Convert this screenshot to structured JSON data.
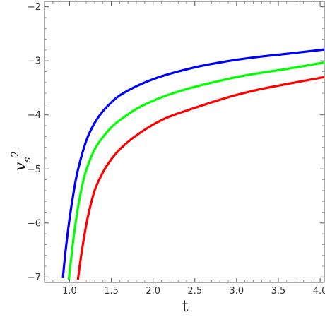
{
  "chart_data": {
    "type": "line",
    "title": "",
    "xlabel": "t",
    "ylabel": "v",
    "ylabel_subscript": "s",
    "ylabel_superscript": "2",
    "xlim": [
      0.7,
      4.05
    ],
    "ylim": [
      -7.1,
      -1.9
    ],
    "x_ticks": [
      1.0,
      1.5,
      2.0,
      2.5,
      3.0,
      3.5,
      4.0
    ],
    "x_tick_labels": [
      "1.0",
      "1.5",
      "2.0",
      "2.5",
      "3.0",
      "3.5",
      "4.0"
    ],
    "y_ticks": [
      -2,
      -3,
      -4,
      -5,
      -6,
      -7
    ],
    "y_tick_labels": [
      "−2",
      "−3",
      "−4",
      "−5",
      "−6",
      "−7"
    ],
    "grid": false,
    "series": [
      {
        "color": "#0000ff",
        "x": [
          0.92,
          0.95,
          1.0,
          1.05,
          1.1,
          1.2,
          1.3,
          1.4,
          1.5,
          1.6,
          1.8,
          2.0,
          2.2,
          2.5,
          2.8,
          3.0,
          3.3,
          3.6,
          4.05
        ],
        "y": [
          -7.02,
          -6.55,
          -5.92,
          -5.42,
          -5.02,
          -4.48,
          -4.15,
          -3.93,
          -3.77,
          -3.64,
          -3.47,
          -3.34,
          -3.24,
          -3.12,
          -3.03,
          -2.98,
          -2.92,
          -2.87,
          -2.79
        ]
      },
      {
        "color": "#00ff00",
        "x": [
          0.99,
          1.02,
          1.05,
          1.1,
          1.15,
          1.2,
          1.3,
          1.4,
          1.5,
          1.6,
          1.8,
          2.0,
          2.2,
          2.5,
          2.8,
          3.0,
          3.3,
          3.6,
          4.05
        ],
        "y": [
          -7.05,
          -6.65,
          -6.25,
          -5.72,
          -5.32,
          -5.02,
          -4.64,
          -4.41,
          -4.23,
          -4.1,
          -3.89,
          -3.74,
          -3.62,
          -3.48,
          -3.37,
          -3.3,
          -3.22,
          -3.15,
          -3.03
        ]
      },
      {
        "color": "#ff0000",
        "x": [
          1.1,
          1.13,
          1.17,
          1.22,
          1.3,
          1.4,
          1.5,
          1.6,
          1.7,
          1.8,
          2.0,
          2.2,
          2.5,
          2.8,
          3.0,
          3.3,
          3.6,
          4.05
        ],
        "y": [
          -7.05,
          -6.7,
          -6.3,
          -5.88,
          -5.4,
          -5.06,
          -4.82,
          -4.64,
          -4.5,
          -4.38,
          -4.18,
          -4.03,
          -3.87,
          -3.72,
          -3.63,
          -3.52,
          -3.43,
          -3.3
        ]
      }
    ]
  }
}
